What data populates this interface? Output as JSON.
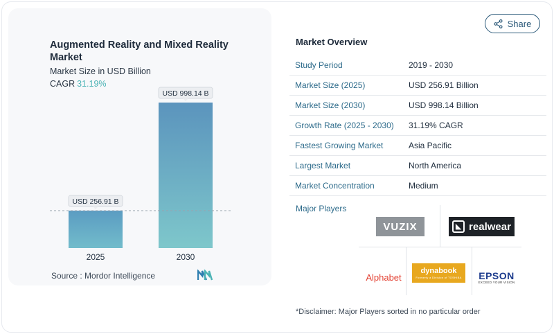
{
  "chart": {
    "title": "Augmented Reality and Mixed Reality Market",
    "subtitle": "Market Size in USD Billion",
    "cagr_label": "CAGR",
    "cagr_value": "31.19%",
    "source": "Source :  Mordor Intelligence"
  },
  "chart_data": {
    "type": "bar",
    "title": "Augmented Reality and Mixed Reality Market",
    "ylabel": "Market Size in USD Billion",
    "categories": [
      "2025",
      "2030"
    ],
    "values": [
      256.91,
      998.14
    ],
    "data_labels": [
      "USD 256.91 B",
      "USD 998.14 B"
    ],
    "ylim": [
      0,
      1000
    ],
    "grid": false,
    "colors": [
      "#5fa3c4",
      "#6db8c8"
    ]
  },
  "share": {
    "label": "Share",
    "icon": "share-icon"
  },
  "overview": {
    "title": "Market Overview",
    "rows": [
      {
        "label": "Study Period",
        "value": "2019 - 2030"
      },
      {
        "label": "Market Size (2025)",
        "value": "USD 256.91 Billion"
      },
      {
        "label": "Market Size (2030)",
        "value": "USD 998.14 Billion"
      },
      {
        "label": "Growth Rate (2025 - 2030)",
        "value": "31.19% CAGR"
      },
      {
        "label": "Fastest Growing Market",
        "value": "Asia Pacific"
      },
      {
        "label": "Largest Market",
        "value": "North America"
      },
      {
        "label": "Market Concentration",
        "value": "Medium"
      }
    ]
  },
  "players": {
    "label": "Major Players",
    "logos": {
      "vuzix": "VUZIX",
      "realwear": "realwear",
      "alphabet": "Alphabet",
      "dynabook": "dynabook",
      "dynabook_tag": "Formerly a Division of TOSHIBA",
      "epson": "EPSON",
      "epson_tag": "EXCEED YOUR VISION"
    }
  },
  "disclaimer": "*Disclaimer: Major Players sorted in no particular order"
}
